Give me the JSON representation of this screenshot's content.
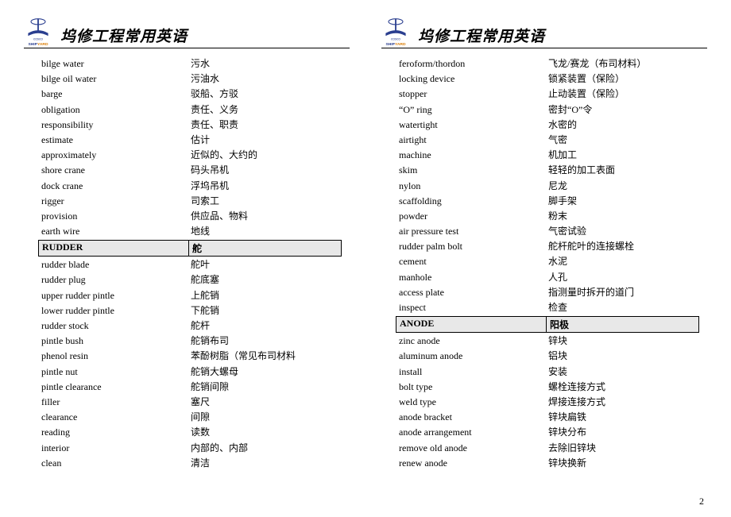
{
  "title": "坞修工程常用英语",
  "page_number": "2",
  "logo_top_text": "cosco",
  "logo_bottom_text": "SHIPYARD",
  "left": {
    "rows1": [
      {
        "en": "bilge water",
        "cn": "污水"
      },
      {
        "en": "bilge oil water",
        "cn": "污油水"
      },
      {
        "en": "barge",
        "cn": "驳船、方驳"
      },
      {
        "en": "obligation",
        "cn": "责任、义务"
      },
      {
        "en": "responsibility",
        "cn": "责任、职责"
      },
      {
        "en": "estimate",
        "cn": "估计"
      },
      {
        "en": "approximately",
        "cn": "近似的、大约的"
      },
      {
        "en": "shore crane",
        "cn": "码头吊机"
      },
      {
        "en": "dock crane",
        "cn": "浮坞吊机"
      },
      {
        "en": "rigger",
        "cn": "司索工"
      },
      {
        "en": "provision",
        "cn": "供应品、物料"
      },
      {
        "en": "earth wire",
        "cn": "地线"
      }
    ],
    "section1": {
      "en": "RUDDER",
      "cn": "舵"
    },
    "rows2": [
      {
        "en": "rudder blade",
        "cn": "舵叶"
      },
      {
        "en": "rudder plug",
        "cn": "舵底塞"
      },
      {
        "en": "upper rudder pintle",
        "cn": "上舵销"
      },
      {
        "en": "lower rudder pintle",
        "cn": "下舵销"
      },
      {
        "en": "rudder stock",
        "cn": "舵杆"
      },
      {
        "en": "pintle bush",
        "cn": "舵销布司"
      },
      {
        "en": "phenol resin",
        "cn": "苯酚树脂（常见布司材料"
      },
      {
        "en": "pintle nut",
        "cn": "舵销大螺母"
      },
      {
        "en": "pintle clearance",
        "cn": "舵销间隙"
      },
      {
        "en": "filler",
        "cn": "塞尺"
      },
      {
        "en": "clearance",
        "cn": "间隙"
      },
      {
        "en": "reading",
        "cn": "读数"
      },
      {
        "en": "interior",
        "cn": "内部的、内部"
      },
      {
        "en": "clean",
        "cn": "清洁"
      }
    ]
  },
  "right": {
    "rows1": [
      {
        "en": "feroform/thordon",
        "cn": "飞龙/赛龙（布司材料）"
      },
      {
        "en": "locking device",
        "cn": "锁紧装置（保险）"
      },
      {
        "en": "stopper",
        "cn": "止动装置（保险）"
      },
      {
        "en": "“O”  ring",
        "cn": "密封“O”令"
      },
      {
        "en": "watertight",
        "cn": "水密的"
      },
      {
        "en": "airtight",
        "cn": "气密"
      },
      {
        "en": "machine",
        "cn": "机加工"
      },
      {
        "en": "skim",
        "cn": "轻轻的加工表面"
      },
      {
        "en": "nylon",
        "cn": "尼龙"
      },
      {
        "en": "scaffolding",
        "cn": "脚手架"
      },
      {
        "en": "powder",
        "cn": "粉末"
      },
      {
        "en": "air pressure test",
        "cn": "气密试验"
      },
      {
        "en": "rudder palm bolt",
        "cn": "舵杆舵叶的连接螺栓"
      },
      {
        "en": "cement",
        "cn": "水泥"
      },
      {
        "en": "manhole",
        "cn": "人孔"
      },
      {
        "en": "access plate",
        "cn": "指测量时拆开的道门"
      },
      {
        "en": "inspect",
        "cn": "检查"
      }
    ],
    "section1": {
      "en": "ANODE",
      "cn": "阳极"
    },
    "rows2": [
      {
        "en": "zinc anode",
        "cn": "锌块"
      },
      {
        "en": "aluminum anode",
        "cn": "铝块"
      },
      {
        "en": "install",
        "cn": "安装"
      },
      {
        "en": "bolt type",
        "cn": "螺栓连接方式"
      },
      {
        "en": "weld type",
        "cn": "焊接连接方式"
      },
      {
        "en": "anode bracket",
        "cn": "锌块扁铁"
      },
      {
        "en": "anode arrangement",
        "cn": "锌块分布"
      },
      {
        "en": "remove old anode",
        "cn": "去除旧锌块"
      },
      {
        "en": "renew anode",
        "cn": "锌块换新"
      }
    ]
  }
}
